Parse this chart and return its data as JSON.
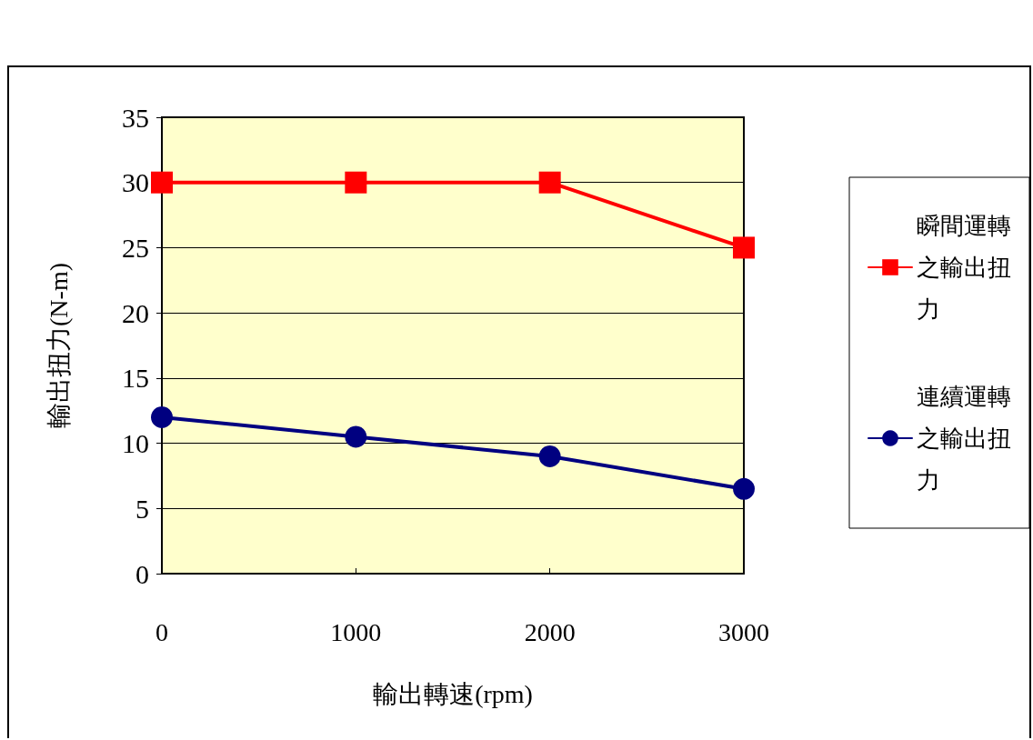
{
  "chart_data": {
    "type": "line",
    "xlabel": "輸出轉速(rpm)",
    "ylabel": "輸出扭力(N-m)",
    "x": [
      0,
      1000,
      2000,
      3000
    ],
    "series": [
      {
        "name": "瞬間運轉之輸出扭力",
        "color": "#ff0000",
        "marker": "square",
        "values": [
          30,
          30,
          30,
          25
        ]
      },
      {
        "name": "連續運轉之輸出扭力",
        "color": "#000080",
        "marker": "circle",
        "values": [
          12,
          10.5,
          9,
          6.5
        ]
      }
    ],
    "xlim": [
      0,
      3000
    ],
    "xticks": [
      0,
      1000,
      2000,
      3000
    ],
    "ylim": [
      0,
      35
    ],
    "yticks": [
      0,
      5,
      10,
      15,
      20,
      25,
      30,
      35
    ],
    "grid": "y",
    "legend": "right",
    "line_style": "solid"
  }
}
